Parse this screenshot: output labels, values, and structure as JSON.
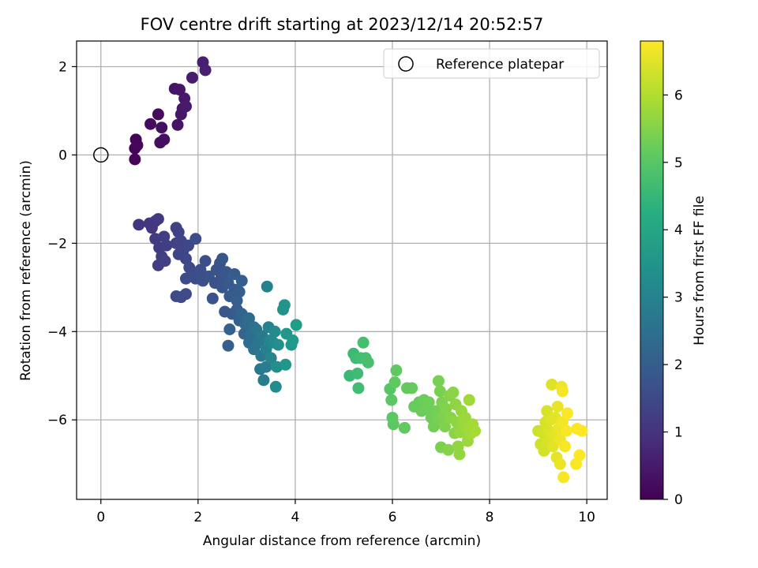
{
  "chart_data": {
    "type": "scatter",
    "title": "FOV centre drift starting at 2023/12/14 20:52:57",
    "xlabel": "Angular distance from reference (arcmin)",
    "ylabel": "Rotation from reference (arcmin)",
    "xlim": [
      -0.5,
      10.42
    ],
    "ylim": [
      -7.8,
      2.58
    ],
    "xticks": [
      0,
      2,
      4,
      6,
      8,
      10
    ],
    "yticks": [
      -6,
      -4,
      -2,
      0,
      2
    ],
    "grid": true,
    "legend": {
      "position": "top-right",
      "entries": [
        "Reference platepar"
      ]
    },
    "reference_point": {
      "x": 0,
      "y": 0,
      "marker": "open-circle"
    },
    "colorbar": {
      "label": "Hours from first FF file",
      "range": [
        0,
        6.8
      ],
      "ticks": [
        0,
        1,
        2,
        3,
        4,
        5,
        6
      ],
      "colormap": "viridis"
    },
    "points": [
      {
        "x": 0.72,
        "y": 0.35,
        "h": 0.05
      },
      {
        "x": 0.7,
        "y": 0.15,
        "h": 0.08
      },
      {
        "x": 0.7,
        "y": -0.1,
        "h": 0.1
      },
      {
        "x": 0.75,
        "y": 0.22,
        "h": 0.12
      },
      {
        "x": 1.02,
        "y": 0.7,
        "h": 0.2
      },
      {
        "x": 1.18,
        "y": 0.92,
        "h": 0.22
      },
      {
        "x": 1.22,
        "y": 0.28,
        "h": 0.25
      },
      {
        "x": 1.25,
        "y": 0.62,
        "h": 0.28
      },
      {
        "x": 1.3,
        "y": 0.35,
        "h": 0.3
      },
      {
        "x": 1.52,
        "y": 1.5,
        "h": 0.35
      },
      {
        "x": 1.58,
        "y": 0.68,
        "h": 0.38
      },
      {
        "x": 1.62,
        "y": 1.48,
        "h": 0.4
      },
      {
        "x": 1.65,
        "y": 0.92,
        "h": 0.42
      },
      {
        "x": 1.68,
        "y": 1.05,
        "h": 0.45
      },
      {
        "x": 1.72,
        "y": 1.28,
        "h": 0.47
      },
      {
        "x": 1.75,
        "y": 1.1,
        "h": 0.48
      },
      {
        "x": 1.88,
        "y": 1.75,
        "h": 0.52
      },
      {
        "x": 2.1,
        "y": 2.1,
        "h": 0.58
      },
      {
        "x": 2.15,
        "y": 1.92,
        "h": 0.6
      },
      {
        "x": 0.78,
        "y": -1.58,
        "h": 1.05
      },
      {
        "x": 1.0,
        "y": -1.55,
        "h": 1.08
      },
      {
        "x": 1.05,
        "y": -1.65,
        "h": 1.1
      },
      {
        "x": 1.12,
        "y": -1.5,
        "h": 1.12
      },
      {
        "x": 1.18,
        "y": -1.45,
        "h": 1.14
      },
      {
        "x": 1.12,
        "y": -1.9,
        "h": 1.16
      },
      {
        "x": 1.2,
        "y": -2.1,
        "h": 1.18
      },
      {
        "x": 1.25,
        "y": -2.3,
        "h": 1.2
      },
      {
        "x": 1.18,
        "y": -2.5,
        "h": 1.22
      },
      {
        "x": 1.3,
        "y": -1.85,
        "h": 1.24
      },
      {
        "x": 1.35,
        "y": -2.05,
        "h": 1.26
      },
      {
        "x": 1.32,
        "y": -2.4,
        "h": 1.28
      },
      {
        "x": 1.55,
        "y": -1.65,
        "h": 1.3
      },
      {
        "x": 1.6,
        "y": -1.75,
        "h": 1.32
      },
      {
        "x": 1.55,
        "y": -2.0,
        "h": 1.34
      },
      {
        "x": 1.65,
        "y": -1.95,
        "h": 1.36
      },
      {
        "x": 1.6,
        "y": -2.25,
        "h": 1.38
      },
      {
        "x": 1.7,
        "y": -2.15,
        "h": 1.4
      },
      {
        "x": 1.75,
        "y": -2.35,
        "h": 1.42
      },
      {
        "x": 1.8,
        "y": -2.05,
        "h": 1.44
      },
      {
        "x": 1.82,
        "y": -2.55,
        "h": 1.46
      },
      {
        "x": 1.55,
        "y": -3.2,
        "h": 1.48
      },
      {
        "x": 1.65,
        "y": -3.22,
        "h": 1.5
      },
      {
        "x": 1.75,
        "y": -3.15,
        "h": 1.52
      },
      {
        "x": 1.75,
        "y": -2.8,
        "h": 1.54
      },
      {
        "x": 1.9,
        "y": -2.7,
        "h": 1.56
      },
      {
        "x": 1.95,
        "y": -1.9,
        "h": 1.58
      },
      {
        "x": 1.95,
        "y": -2.8,
        "h": 1.6
      },
      {
        "x": 2.05,
        "y": -2.6,
        "h": 1.62
      },
      {
        "x": 2.1,
        "y": -2.85,
        "h": 1.64
      },
      {
        "x": 2.15,
        "y": -2.4,
        "h": 1.66
      },
      {
        "x": 2.22,
        "y": -2.75,
        "h": 1.68
      },
      {
        "x": 2.3,
        "y": -3.25,
        "h": 1.7
      },
      {
        "x": 2.35,
        "y": -2.9,
        "h": 1.72
      },
      {
        "x": 2.38,
        "y": -2.6,
        "h": 1.74
      },
      {
        "x": 2.45,
        "y": -2.45,
        "h": 1.76
      },
      {
        "x": 2.48,
        "y": -2.75,
        "h": 1.78
      },
      {
        "x": 2.5,
        "y": -3.0,
        "h": 1.8
      },
      {
        "x": 2.5,
        "y": -2.35,
        "h": 1.82
      },
      {
        "x": 2.55,
        "y": -3.55,
        "h": 1.84
      },
      {
        "x": 2.58,
        "y": -2.65,
        "h": 1.86
      },
      {
        "x": 2.62,
        "y": -2.9,
        "h": 1.88
      },
      {
        "x": 2.65,
        "y": -3.2,
        "h": 1.9
      },
      {
        "x": 2.7,
        "y": -3.6,
        "h": 1.92
      },
      {
        "x": 2.75,
        "y": -3.05,
        "h": 1.94
      },
      {
        "x": 2.75,
        "y": -2.7,
        "h": 1.96
      },
      {
        "x": 2.8,
        "y": -3.3,
        "h": 1.98
      },
      {
        "x": 2.8,
        "y": -3.5,
        "h": 2.0
      },
      {
        "x": 2.85,
        "y": -3.1,
        "h": 2.02
      },
      {
        "x": 2.9,
        "y": -2.85,
        "h": 2.04
      },
      {
        "x": 2.62,
        "y": -4.32,
        "h": 2.06
      },
      {
        "x": 2.65,
        "y": -3.95,
        "h": 2.1
      },
      {
        "x": 2.85,
        "y": -3.75,
        "h": 2.15
      },
      {
        "x": 2.9,
        "y": -3.6,
        "h": 2.2
      },
      {
        "x": 2.95,
        "y": -4.05,
        "h": 2.25
      },
      {
        "x": 2.98,
        "y": -3.85,
        "h": 2.3
      },
      {
        "x": 3.05,
        "y": -3.7,
        "h": 2.35
      },
      {
        "x": 3.05,
        "y": -4.25,
        "h": 2.4
      },
      {
        "x": 3.1,
        "y": -4.05,
        "h": 2.45
      },
      {
        "x": 3.15,
        "y": -3.9,
        "h": 2.5
      },
      {
        "x": 3.15,
        "y": -4.4,
        "h": 2.55
      },
      {
        "x": 3.2,
        "y": -3.95,
        "h": 2.6
      },
      {
        "x": 3.25,
        "y": -4.25,
        "h": 2.65
      },
      {
        "x": 3.28,
        "y": -4.85,
        "h": 2.7
      },
      {
        "x": 3.3,
        "y": -4.55,
        "h": 2.75
      },
      {
        "x": 3.32,
        "y": -4.1,
        "h": 2.8
      },
      {
        "x": 3.35,
        "y": -5.1,
        "h": 2.85
      },
      {
        "x": 3.4,
        "y": -4.8,
        "h": 2.9
      },
      {
        "x": 3.4,
        "y": -4.4,
        "h": 2.95
      },
      {
        "x": 3.42,
        "y": -2.98,
        "h": 3.0
      },
      {
        "x": 3.45,
        "y": -3.9,
        "h": 3.05
      },
      {
        "x": 3.48,
        "y": -4.2,
        "h": 3.1
      },
      {
        "x": 3.5,
        "y": -4.6,
        "h": 3.15
      },
      {
        "x": 3.55,
        "y": -4.25,
        "h": 3.2
      },
      {
        "x": 3.58,
        "y": -4.0,
        "h": 3.25
      },
      {
        "x": 3.6,
        "y": -5.25,
        "h": 3.3
      },
      {
        "x": 3.62,
        "y": -4.8,
        "h": 3.35
      },
      {
        "x": 3.65,
        "y": -4.3,
        "h": 3.4
      },
      {
        "x": 3.75,
        "y": -3.5,
        "h": 3.45
      },
      {
        "x": 3.78,
        "y": -3.4,
        "h": 3.5
      },
      {
        "x": 3.8,
        "y": -4.75,
        "h": 3.55
      },
      {
        "x": 3.82,
        "y": -4.05,
        "h": 3.6
      },
      {
        "x": 3.92,
        "y": -4.3,
        "h": 3.65
      },
      {
        "x": 3.95,
        "y": -4.2,
        "h": 3.7
      },
      {
        "x": 4.02,
        "y": -3.85,
        "h": 3.75
      },
      {
        "x": 5.12,
        "y": -5.0,
        "h": 4.6
      },
      {
        "x": 5.2,
        "y": -4.5,
        "h": 4.62
      },
      {
        "x": 5.25,
        "y": -4.6,
        "h": 4.65
      },
      {
        "x": 5.28,
        "y": -4.95,
        "h": 4.68
      },
      {
        "x": 5.3,
        "y": -5.28,
        "h": 4.7
      },
      {
        "x": 5.35,
        "y": -4.6,
        "h": 4.72
      },
      {
        "x": 5.4,
        "y": -4.25,
        "h": 4.75
      },
      {
        "x": 5.45,
        "y": -4.6,
        "h": 4.78
      },
      {
        "x": 5.5,
        "y": -4.7,
        "h": 4.8
      },
      {
        "x": 5.95,
        "y": -5.3,
        "h": 5.0
      },
      {
        "x": 5.98,
        "y": -5.55,
        "h": 5.02
      },
      {
        "x": 6.0,
        "y": -5.95,
        "h": 5.04
      },
      {
        "x": 6.02,
        "y": -6.1,
        "h": 5.06
      },
      {
        "x": 6.05,
        "y": -5.15,
        "h": 5.08
      },
      {
        "x": 6.08,
        "y": -4.88,
        "h": 5.1
      },
      {
        "x": 6.25,
        "y": -6.18,
        "h": 5.12
      },
      {
        "x": 6.3,
        "y": -5.28,
        "h": 5.14
      },
      {
        "x": 6.4,
        "y": -5.28,
        "h": 5.16
      },
      {
        "x": 6.45,
        "y": -5.7,
        "h": 5.18
      },
      {
        "x": 6.55,
        "y": -5.6,
        "h": 5.2
      },
      {
        "x": 6.6,
        "y": -5.8,
        "h": 5.22
      },
      {
        "x": 6.65,
        "y": -5.55,
        "h": 5.24
      },
      {
        "x": 6.7,
        "y": -5.75,
        "h": 5.26
      },
      {
        "x": 6.75,
        "y": -5.6,
        "h": 5.28
      },
      {
        "x": 6.8,
        "y": -5.95,
        "h": 5.3
      },
      {
        "x": 6.85,
        "y": -6.15,
        "h": 5.32
      },
      {
        "x": 6.9,
        "y": -5.8,
        "h": 5.34
      },
      {
        "x": 6.95,
        "y": -5.12,
        "h": 5.36
      },
      {
        "x": 6.95,
        "y": -6.0,
        "h": 5.38
      },
      {
        "x": 6.98,
        "y": -5.35,
        "h": 5.4
      },
      {
        "x": 7.0,
        "y": -6.62,
        "h": 5.42
      },
      {
        "x": 7.02,
        "y": -5.6,
        "h": 5.44
      },
      {
        "x": 7.05,
        "y": -5.9,
        "h": 5.46
      },
      {
        "x": 7.08,
        "y": -6.15,
        "h": 5.48
      },
      {
        "x": 7.1,
        "y": -5.75,
        "h": 5.5
      },
      {
        "x": 7.15,
        "y": -6.68,
        "h": 5.52
      },
      {
        "x": 7.18,
        "y": -5.45,
        "h": 5.54
      },
      {
        "x": 7.2,
        "y": -5.95,
        "h": 5.56
      },
      {
        "x": 7.25,
        "y": -5.38,
        "h": 5.58
      },
      {
        "x": 7.28,
        "y": -6.3,
        "h": 5.6
      },
      {
        "x": 7.3,
        "y": -5.65,
        "h": 5.62
      },
      {
        "x": 7.32,
        "y": -6.05,
        "h": 5.64
      },
      {
        "x": 7.35,
        "y": -6.6,
        "h": 5.66
      },
      {
        "x": 7.38,
        "y": -6.78,
        "h": 5.68
      },
      {
        "x": 7.4,
        "y": -6.28,
        "h": 5.7
      },
      {
        "x": 7.42,
        "y": -5.8,
        "h": 5.72
      },
      {
        "x": 7.45,
        "y": -6.05,
        "h": 5.74
      },
      {
        "x": 7.5,
        "y": -5.95,
        "h": 5.76
      },
      {
        "x": 7.55,
        "y": -6.48,
        "h": 5.78
      },
      {
        "x": 7.55,
        "y": -6.2,
        "h": 5.8
      },
      {
        "x": 7.58,
        "y": -5.55,
        "h": 5.82
      },
      {
        "x": 7.62,
        "y": -6.3,
        "h": 5.84
      },
      {
        "x": 7.65,
        "y": -6.1,
        "h": 5.86
      },
      {
        "x": 7.7,
        "y": -6.25,
        "h": 5.88
      },
      {
        "x": 9.0,
        "y": -6.25,
        "h": 6.3
      },
      {
        "x": 9.05,
        "y": -6.55,
        "h": 6.32
      },
      {
        "x": 9.1,
        "y": -6.3,
        "h": 6.34
      },
      {
        "x": 9.12,
        "y": -6.7,
        "h": 6.36
      },
      {
        "x": 9.15,
        "y": -6.05,
        "h": 6.38
      },
      {
        "x": 9.18,
        "y": -5.8,
        "h": 6.4
      },
      {
        "x": 9.2,
        "y": -6.5,
        "h": 6.42
      },
      {
        "x": 9.22,
        "y": -6.25,
        "h": 6.44
      },
      {
        "x": 9.25,
        "y": -6.0,
        "h": 6.46
      },
      {
        "x": 9.28,
        "y": -5.2,
        "h": 6.48
      },
      {
        "x": 9.3,
        "y": -6.6,
        "h": 6.5
      },
      {
        "x": 9.32,
        "y": -6.35,
        "h": 6.52
      },
      {
        "x": 9.35,
        "y": -5.95,
        "h": 6.54
      },
      {
        "x": 9.38,
        "y": -6.85,
        "h": 6.56
      },
      {
        "x": 9.4,
        "y": -5.7,
        "h": 6.58
      },
      {
        "x": 9.42,
        "y": -6.2,
        "h": 6.6
      },
      {
        "x": 9.45,
        "y": -7.0,
        "h": 6.62
      },
      {
        "x": 9.45,
        "y": -6.45,
        "h": 6.64
      },
      {
        "x": 9.48,
        "y": -5.25,
        "h": 6.66
      },
      {
        "x": 9.5,
        "y": -5.35,
        "h": 6.68
      },
      {
        "x": 9.5,
        "y": -6.05,
        "h": 6.7
      },
      {
        "x": 9.52,
        "y": -7.3,
        "h": 6.72
      },
      {
        "x": 9.55,
        "y": -6.6,
        "h": 6.74
      },
      {
        "x": 9.58,
        "y": -6.25,
        "h": 6.76
      },
      {
        "x": 9.6,
        "y": -5.85,
        "h": 6.78
      },
      {
        "x": 9.78,
        "y": -7.0,
        "h": 6.78
      },
      {
        "x": 9.8,
        "y": -6.2,
        "h": 6.79
      },
      {
        "x": 9.85,
        "y": -6.8,
        "h": 6.8
      },
      {
        "x": 9.9,
        "y": -6.25,
        "h": 6.8
      }
    ]
  }
}
